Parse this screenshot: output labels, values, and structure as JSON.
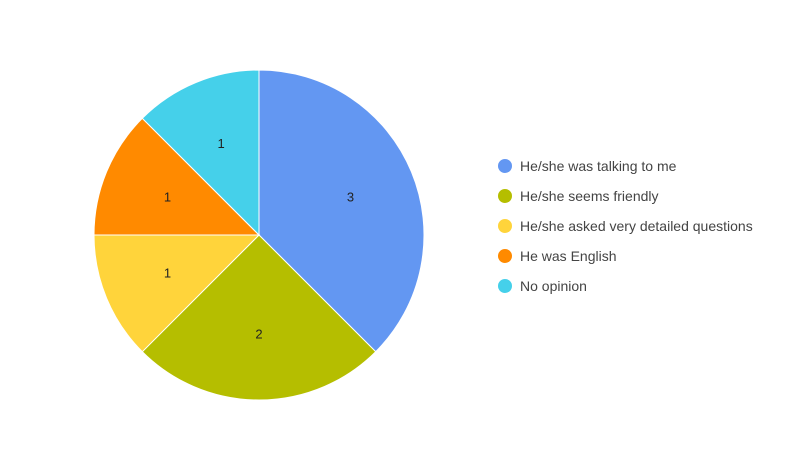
{
  "chart_data": {
    "type": "pie",
    "title": "",
    "slices": [
      {
        "label": "He/she was talking to me",
        "value": 3,
        "color": "#6397f2"
      },
      {
        "label": "He/she seems friendly",
        "value": 2,
        "color": "#b5be00"
      },
      {
        "label": "He/she asked very detailed questions",
        "value": 1,
        "color": "#ffd43b"
      },
      {
        "label": "He was English",
        "value": 1,
        "color": "#ff8a00"
      },
      {
        "label": "No opinion",
        "value": 1,
        "color": "#45d0ea"
      }
    ],
    "legend_position": "right",
    "start_angle": "top, clockwise"
  }
}
